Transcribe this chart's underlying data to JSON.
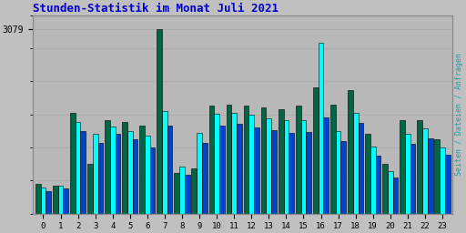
{
  "title": "Stunden-Statistik im Monat Juli 2021",
  "title_color": "#0000cc",
  "background_color": "#c0c0c0",
  "plot_bg_color": "#b8b8b8",
  "ylabel_right": "Seiten / Dateien / Anfragen",
  "ytick_val": 3079,
  "ytick_label": "3079",
  "hours": [
    0,
    1,
    2,
    3,
    4,
    5,
    6,
    7,
    8,
    9,
    10,
    11,
    12,
    13,
    14,
    15,
    16,
    17,
    18,
    19,
    20,
    21,
    22,
    23
  ],
  "seiten": [
    430,
    470,
    1530,
    1320,
    1450,
    1380,
    1300,
    1700,
    780,
    1350,
    1660,
    1680,
    1650,
    1590,
    1560,
    1550,
    2850,
    1380,
    1680,
    1120,
    700,
    1320,
    1420,
    1100
  ],
  "dateien": [
    370,
    410,
    1380,
    1170,
    1320,
    1240,
    1100,
    1460,
    650,
    1180,
    1460,
    1490,
    1430,
    1390,
    1350,
    1360,
    1600,
    1200,
    1510,
    960,
    600,
    1160,
    1250,
    980
  ],
  "anfragen": [
    500,
    460,
    1680,
    820,
    1550,
    1520,
    1460,
    3079,
    680,
    750,
    1800,
    1810,
    1800,
    1760,
    1740,
    1800,
    2100,
    1820,
    2050,
    1320,
    820,
    1550,
    1550,
    1230
  ],
  "color_seiten": "#00ffff",
  "color_dateien": "#0044cc",
  "color_anfragen": "#006644",
  "bar_edge_color": "#000000",
  "grid_color": "#aaaaaa",
  "font_name": "monospace",
  "ylim_max": 3300
}
